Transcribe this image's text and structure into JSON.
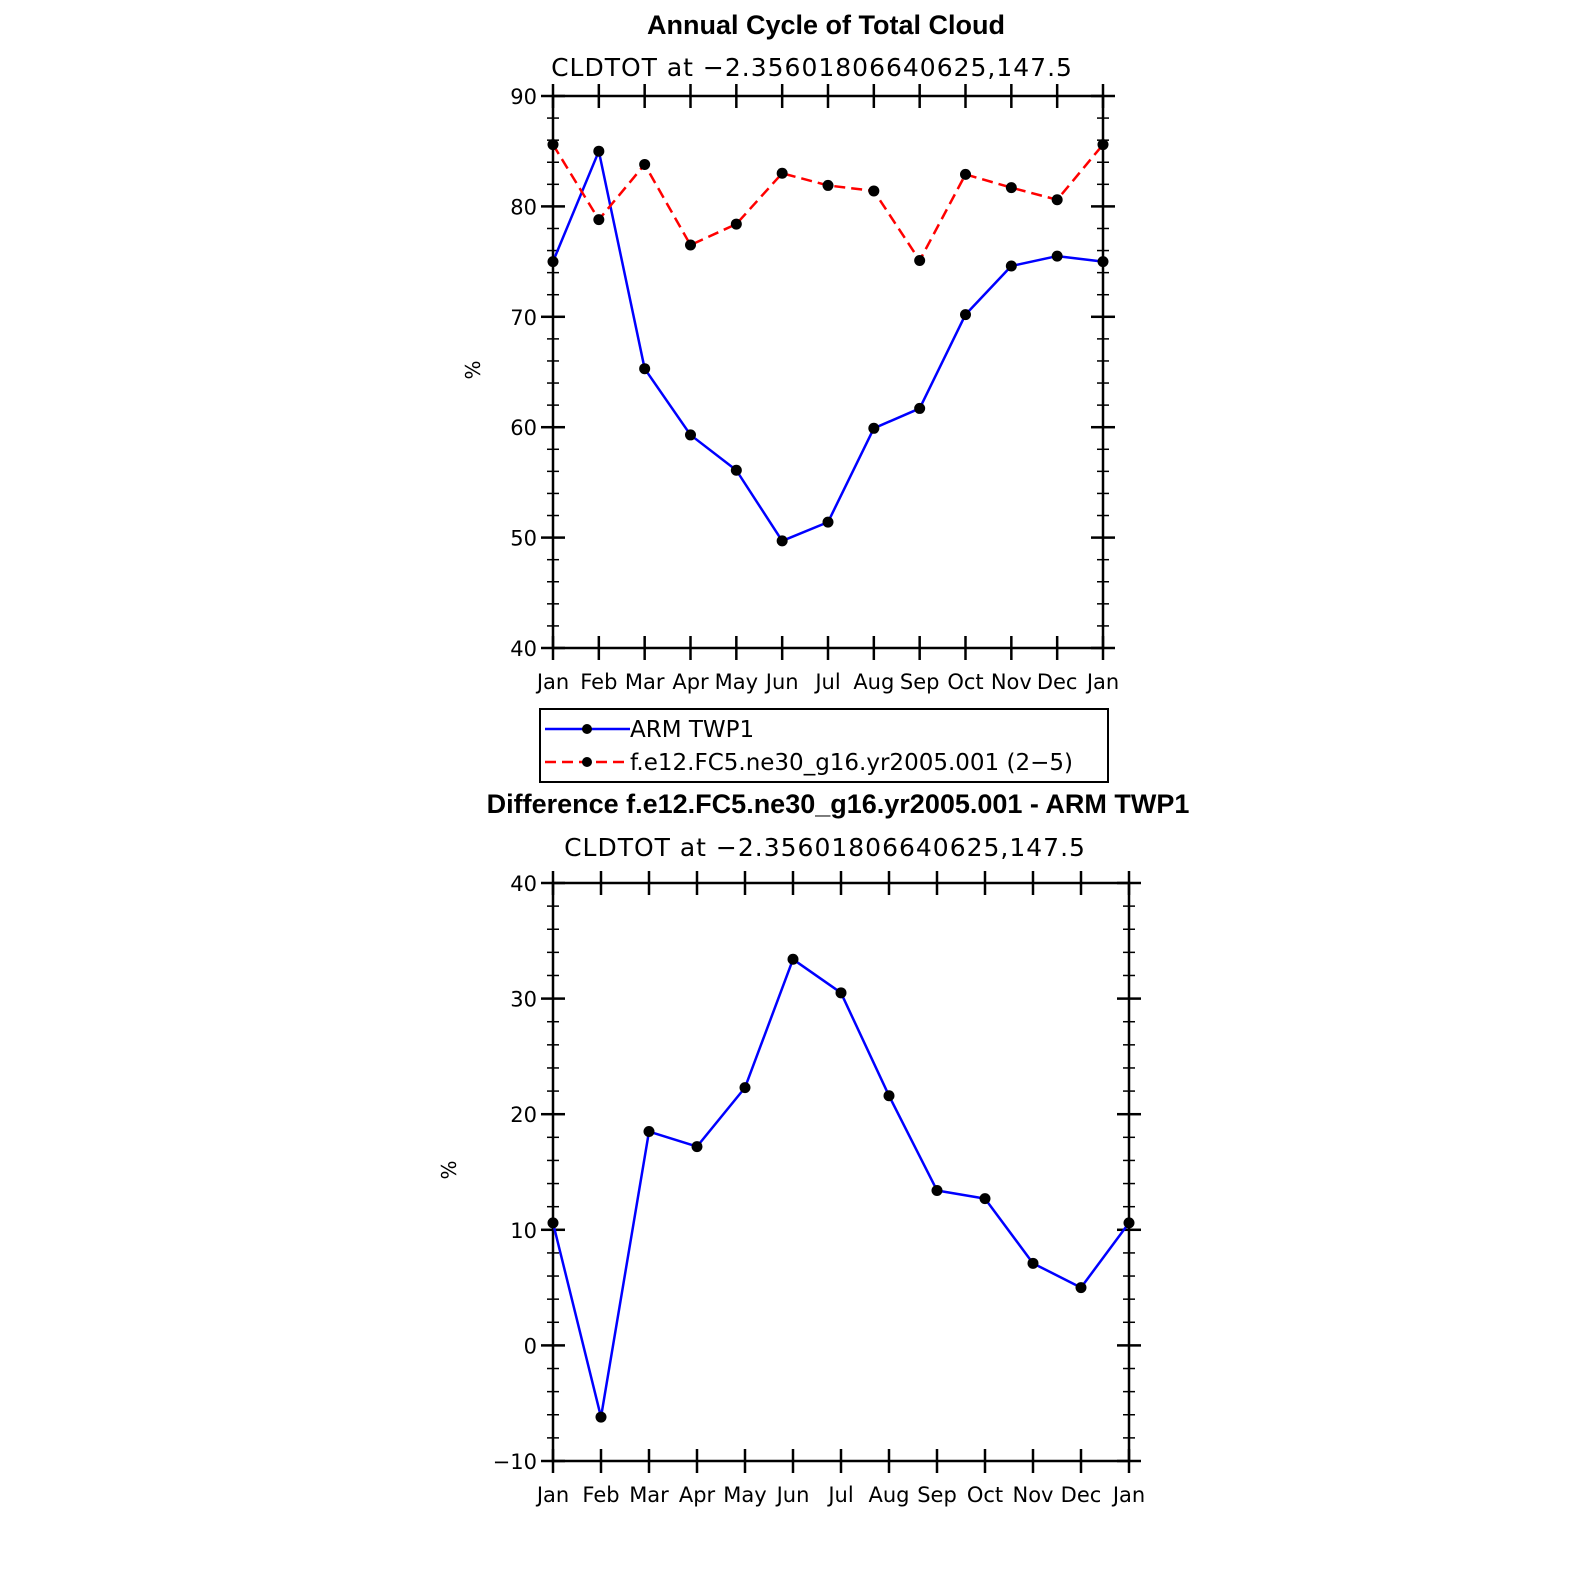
{
  "chart_data": [
    {
      "type": "line",
      "title": "Annual Cycle of Total Cloud",
      "subtitle": "CLDTOT at −2.35601806640625,147.5",
      "xlabel": "",
      "ylabel": "%",
      "categories": [
        "Jan",
        "Feb",
        "Mar",
        "Apr",
        "May",
        "Jun",
        "Jul",
        "Aug",
        "Sep",
        "Oct",
        "Nov",
        "Dec",
        "Jan"
      ],
      "ylim": [
        40,
        90
      ],
      "yticks": [
        "40",
        "50",
        "60",
        "70",
        "80",
        "90"
      ],
      "series": [
        {
          "name": "ARM TWP1",
          "color": "#0000ff",
          "dash": "solid",
          "values": [
            75.0,
            85.0,
            65.3,
            59.3,
            56.1,
            49.7,
            51.4,
            59.9,
            61.7,
            70.2,
            74.6,
            75.5,
            75.0
          ]
        },
        {
          "name": "f.e12.FC5.ne30_g16.yr2005.001 (2−5)",
          "color": "#ff0000",
          "dash": "dashed",
          "values": [
            85.6,
            78.8,
            83.8,
            76.5,
            78.4,
            83.0,
            81.9,
            81.4,
            75.1,
            82.9,
            81.7,
            80.6,
            85.6
          ]
        }
      ]
    },
    {
      "type": "line",
      "title": "Difference f.e12.FC5.ne30_g16.yr2005.001 - ARM TWP1",
      "subtitle": "CLDTOT at −2.35601806640625,147.5",
      "xlabel": "",
      "ylabel": "%",
      "categories": [
        "Jan",
        "Feb",
        "Mar",
        "Apr",
        "May",
        "Jun",
        "Jul",
        "Aug",
        "Sep",
        "Oct",
        "Nov",
        "Dec",
        "Jan"
      ],
      "ylim": [
        -10,
        40
      ],
      "yticks": [
        "−10",
        "0",
        "10",
        "20",
        "30",
        "40"
      ],
      "series": [
        {
          "name": "Difference",
          "color": "#0000ff",
          "dash": "solid",
          "values": [
            10.6,
            -6.2,
            18.5,
            17.2,
            22.3,
            33.4,
            30.5,
            21.6,
            13.4,
            12.7,
            7.1,
            5.0,
            10.6
          ]
        }
      ]
    }
  ]
}
